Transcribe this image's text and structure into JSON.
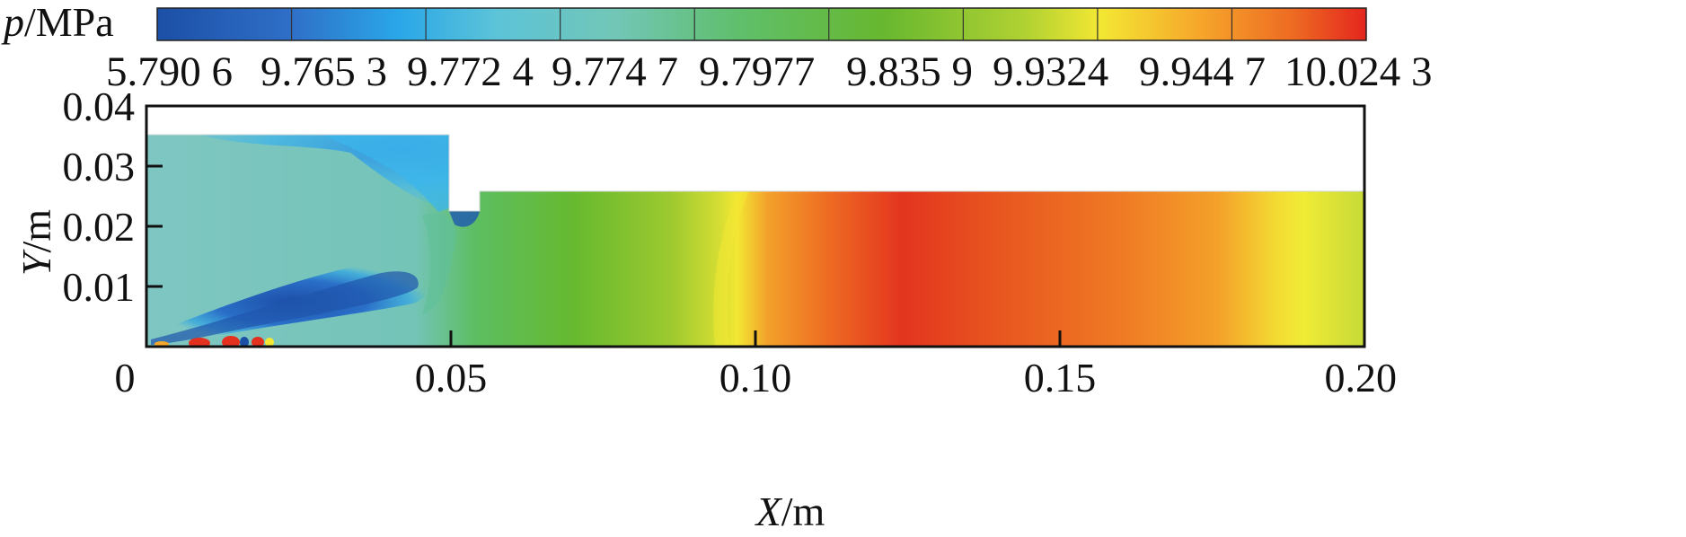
{
  "chart_data": {
    "type": "heatmap",
    "colorbar": {
      "title_symbol": "p",
      "title_unit": "/MPa",
      "tick_labels": [
        "5.790 6",
        "9.765 3",
        "9.772 4",
        "9.774 7",
        "9.7977",
        "9.835 9",
        "9.9324",
        "9.944 7",
        "10.024 3"
      ],
      "levels": [
        5.7906,
        9.7653,
        9.7724,
        9.7747,
        9.7977,
        9.8359,
        9.9324,
        9.9447,
        10.0243
      ],
      "colors": [
        "#1c4fa6",
        "#2a98e0",
        "#36b5ec",
        "#6cc3c9",
        "#5fbf6c",
        "#65b530",
        "#a9cd31",
        "#f3e733",
        "#f6a82b",
        "#ed6a22",
        "#e4301f"
      ]
    },
    "x_axis": {
      "symbol": "X",
      "unit": "/m",
      "ticks": [
        0,
        0.05,
        0.1,
        0.15,
        0.2
      ],
      "tick_labels": [
        "0",
        "0.05",
        "0.10",
        "0.15",
        "0.20"
      ],
      "range": [
        0,
        0.2
      ]
    },
    "y_axis": {
      "symbol": "Y",
      "unit": "/m",
      "ticks": [
        0.01,
        0.02,
        0.03,
        0.04
      ],
      "tick_labels": [
        "0.01",
        "0.02",
        "0.03",
        "0.04"
      ],
      "range": [
        0,
        0.04
      ]
    },
    "domain": {
      "inlet_height": 0.035,
      "step_x": [
        0.05,
        0.055
      ],
      "step_bottom": 0.0225,
      "outlet_height": 0.0255
    },
    "field_profile_along_x": [
      {
        "x": 0.0,
        "p": 9.7747
      },
      {
        "x": 0.05,
        "p": 9.7977
      },
      {
        "x": 0.07,
        "p": 9.8359
      },
      {
        "x": 0.09,
        "p": 9.9324
      },
      {
        "x": 0.11,
        "p": 10.01
      },
      {
        "x": 0.12,
        "p": 10.0243
      },
      {
        "x": 0.15,
        "p": 9.99
      },
      {
        "x": 0.17,
        "p": 9.96
      },
      {
        "x": 0.19,
        "p": 9.9447
      },
      {
        "x": 0.2,
        "p": 9.92
      }
    ]
  }
}
